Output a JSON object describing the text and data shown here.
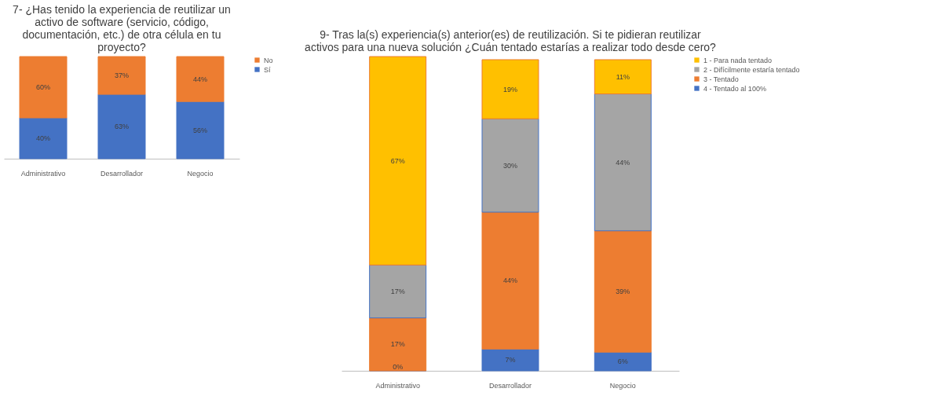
{
  "chart_data": [
    {
      "type": "bar",
      "title": "7- ¿Has tenido la experiencia de  reutilizar un\nactivo de software (servicio, código,\ndocumentación, etc.) de otra célula en tu\nproyecto?",
      "categories": [
        "Administrativo",
        "Desarrollador",
        "Negocio"
      ],
      "stacked": true,
      "legend": "right",
      "data_labels": true,
      "series": [
        {
          "name": "Sí",
          "color": "#4472c4",
          "values": [
            40,
            63,
            56
          ],
          "value_labels": [
            "40%",
            "63%",
            "56%"
          ]
        },
        {
          "name": "No",
          "color": "#ed7d31",
          "values": [
            60,
            37,
            44
          ],
          "value_labels": [
            "60%",
            "37%",
            "44%"
          ]
        }
      ]
    },
    {
      "type": "bar",
      "title": "9- Tras la(s) experiencia(s) anterior(es) de reutilización. Si te pidieran reutilizar\nactivos para una nueva solución ¿Cuán tentado estarías a realizar todo desde cero?",
      "categories": [
        "Administrativo",
        "Desarrollador",
        "Negocio"
      ],
      "stacked": true,
      "legend": "right",
      "data_labels": true,
      "series": [
        {
          "name": "4 - Tentado al 100%",
          "color": "#4472c4",
          "values": [
            0,
            7,
            6
          ],
          "value_labels": [
            "0%",
            "7%",
            "6%"
          ]
        },
        {
          "name": "3 - Tentado",
          "color": "#ed7d31",
          "values": [
            17,
            44,
            39
          ],
          "value_labels": [
            "17%",
            "44%",
            "39%"
          ]
        },
        {
          "name": "2 - Difícilmente estaría tentado",
          "color": "#a5a5a5",
          "values": [
            17,
            30,
            44
          ],
          "value_labels": [
            "17%",
            "30%",
            "44%"
          ]
        },
        {
          "name": "1 - Para nada tentado",
          "color": "#ffc000",
          "values": [
            67,
            19,
            11
          ],
          "value_labels": [
            "67%",
            "19%",
            "11%"
          ]
        }
      ]
    }
  ]
}
